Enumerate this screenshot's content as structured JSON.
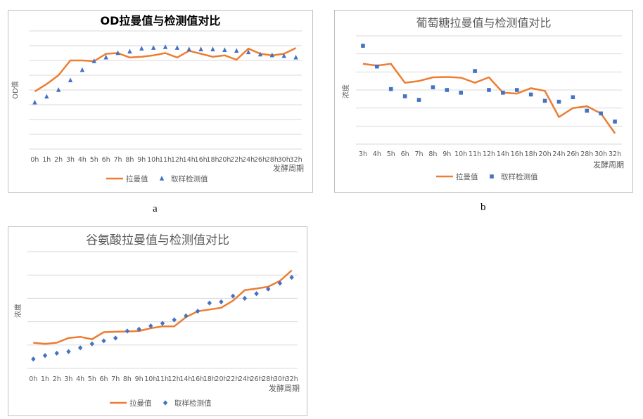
{
  "captions": {
    "a": "a",
    "b": "b"
  },
  "colors": {
    "line": "#ED7D31",
    "marker": "#4472C4",
    "grid": "#D9D9D9",
    "border": "#BFBFBF",
    "text": "#595959"
  },
  "chart_data": [
    {
      "type": "line",
      "title": "OD拉曼值与检测值对比",
      "xlabel": "发酵周期",
      "ylabel": "OD值",
      "x": [
        "0h",
        "1h",
        "2h",
        "3h",
        "4h",
        "5h",
        "6h",
        "7h",
        "8h",
        "9h",
        "10h",
        "11h",
        "12h",
        "14h",
        "16h",
        "18h",
        "20h",
        "22h",
        "24h",
        "26h",
        "28h",
        "30h",
        "32h"
      ],
      "ylim": [
        0,
        8
      ],
      "grid": true,
      "legend_position": "bottom",
      "series": [
        {
          "name": "拉曼值",
          "style": "line",
          "values": [
            3.9,
            4.4,
            5.0,
            6.0,
            6.0,
            5.95,
            6.45,
            6.5,
            6.2,
            6.25,
            6.35,
            6.5,
            6.2,
            6.65,
            6.45,
            6.25,
            6.35,
            6.05,
            6.8,
            6.45,
            6.35,
            6.45,
            6.85
          ]
        },
        {
          "name": "取样检测值",
          "style": "marker",
          "marker": "triangle",
          "values": [
            3.15,
            3.55,
            4.0,
            4.65,
            5.35,
            5.95,
            6.2,
            6.5,
            6.6,
            6.8,
            6.85,
            6.9,
            6.85,
            6.75,
            6.75,
            6.75,
            6.7,
            6.65,
            6.55,
            6.4,
            6.35,
            6.3,
            6.2
          ]
        }
      ]
    },
    {
      "type": "line",
      "title": "葡萄糖拉曼值与检测值对比",
      "xlabel": "发酵周期",
      "ylabel": "浓度",
      "x": [
        "3h",
        "4h",
        "5h",
        "6h",
        "7h",
        "8h",
        "9h",
        "10h",
        "11h",
        "12h",
        "14h",
        "16h",
        "18h",
        "20h",
        "24h",
        "26h",
        "28h",
        "30h",
        "32h"
      ],
      "ylim": [
        0,
        6
      ],
      "grid": true,
      "legend_position": "bottom",
      "series": [
        {
          "name": "拉曼值",
          "style": "line",
          "values": [
            4.45,
            4.35,
            4.45,
            3.4,
            3.5,
            3.7,
            3.72,
            3.68,
            3.4,
            3.7,
            2.85,
            2.8,
            3.1,
            2.95,
            1.5,
            2.0,
            2.1,
            1.7,
            0.6
          ]
        },
        {
          "name": "取样检测值",
          "style": "marker",
          "marker": "square",
          "values": [
            5.45,
            4.3,
            3.05,
            2.65,
            2.45,
            3.15,
            3.0,
            2.85,
            4.05,
            3.0,
            2.85,
            3.0,
            2.75,
            2.4,
            2.35,
            2.6,
            1.85,
            1.7,
            1.25
          ]
        }
      ]
    },
    {
      "type": "line",
      "title": "谷氨酸拉曼值与检测值对比",
      "xlabel": "发酵周期",
      "ylabel": "浓度",
      "x": [
        "0h",
        "1h",
        "2h",
        "3h",
        "4h",
        "5h",
        "6h",
        "7h",
        "8h",
        "9h",
        "10h",
        "11h",
        "12h",
        "14h",
        "16h",
        "18h",
        "20h",
        "22h",
        "24h",
        "26h",
        "28h",
        "30h",
        "32h"
      ],
      "ylim": [
        0,
        5
      ],
      "grid": true,
      "legend_position": "bottom",
      "series": [
        {
          "name": "拉曼值",
          "style": "line",
          "values": [
            1.1,
            1.05,
            1.1,
            1.3,
            1.35,
            1.25,
            1.55,
            1.57,
            1.58,
            1.6,
            1.72,
            1.8,
            1.8,
            2.2,
            2.45,
            2.52,
            2.6,
            2.9,
            3.35,
            3.42,
            3.5,
            3.75,
            4.2
          ]
        },
        {
          "name": "取样检测值",
          "style": "marker",
          "marker": "diamond",
          "values": [
            0.4,
            0.55,
            0.65,
            0.72,
            0.88,
            1.05,
            1.18,
            1.3,
            1.6,
            1.68,
            1.82,
            1.93,
            2.08,
            2.25,
            2.45,
            2.8,
            2.85,
            3.1,
            3.0,
            3.2,
            3.4,
            3.65,
            3.9
          ]
        }
      ]
    }
  ]
}
